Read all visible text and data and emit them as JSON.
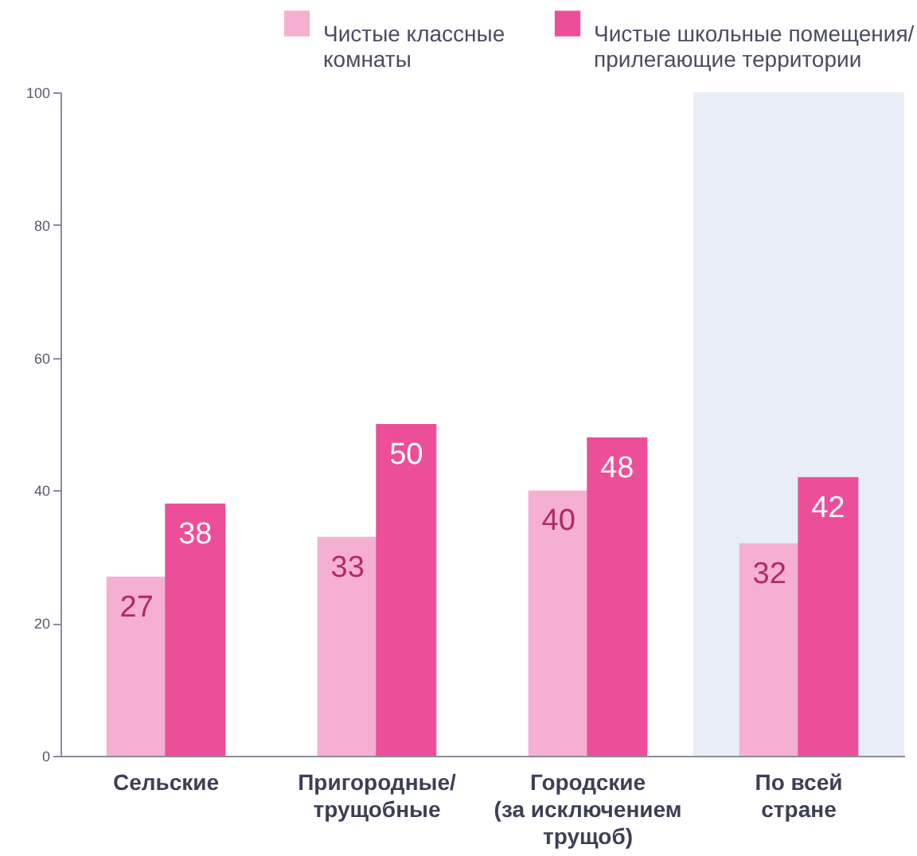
{
  "chart_data": {
    "type": "bar",
    "categories": [
      "Сельские",
      "Пригородные/\nтрущобные",
      "Городские\n(за исключением\nтрущоб)",
      "По всей\nстране"
    ],
    "series": [
      {
        "name": "Чистые классные\nкомнаты",
        "color": "#f5b0d1",
        "values": [
          27,
          33,
          40,
          32
        ]
      },
      {
        "name": "Чистые школьные помещения/\nприлегающие территории",
        "color": "#ec4e99",
        "values": [
          38,
          50,
          48,
          42
        ]
      }
    ],
    "ylim": [
      0,
      100
    ],
    "yticks": [
      0,
      20,
      40,
      60,
      80,
      100
    ],
    "grid": false,
    "legend": "top right",
    "data_labels": true,
    "bands": [
      {
        "axis": "x",
        "from": "По всей\nстране",
        "to": "По всей\nстране",
        "color": "#e9edf5"
      }
    ]
  }
}
